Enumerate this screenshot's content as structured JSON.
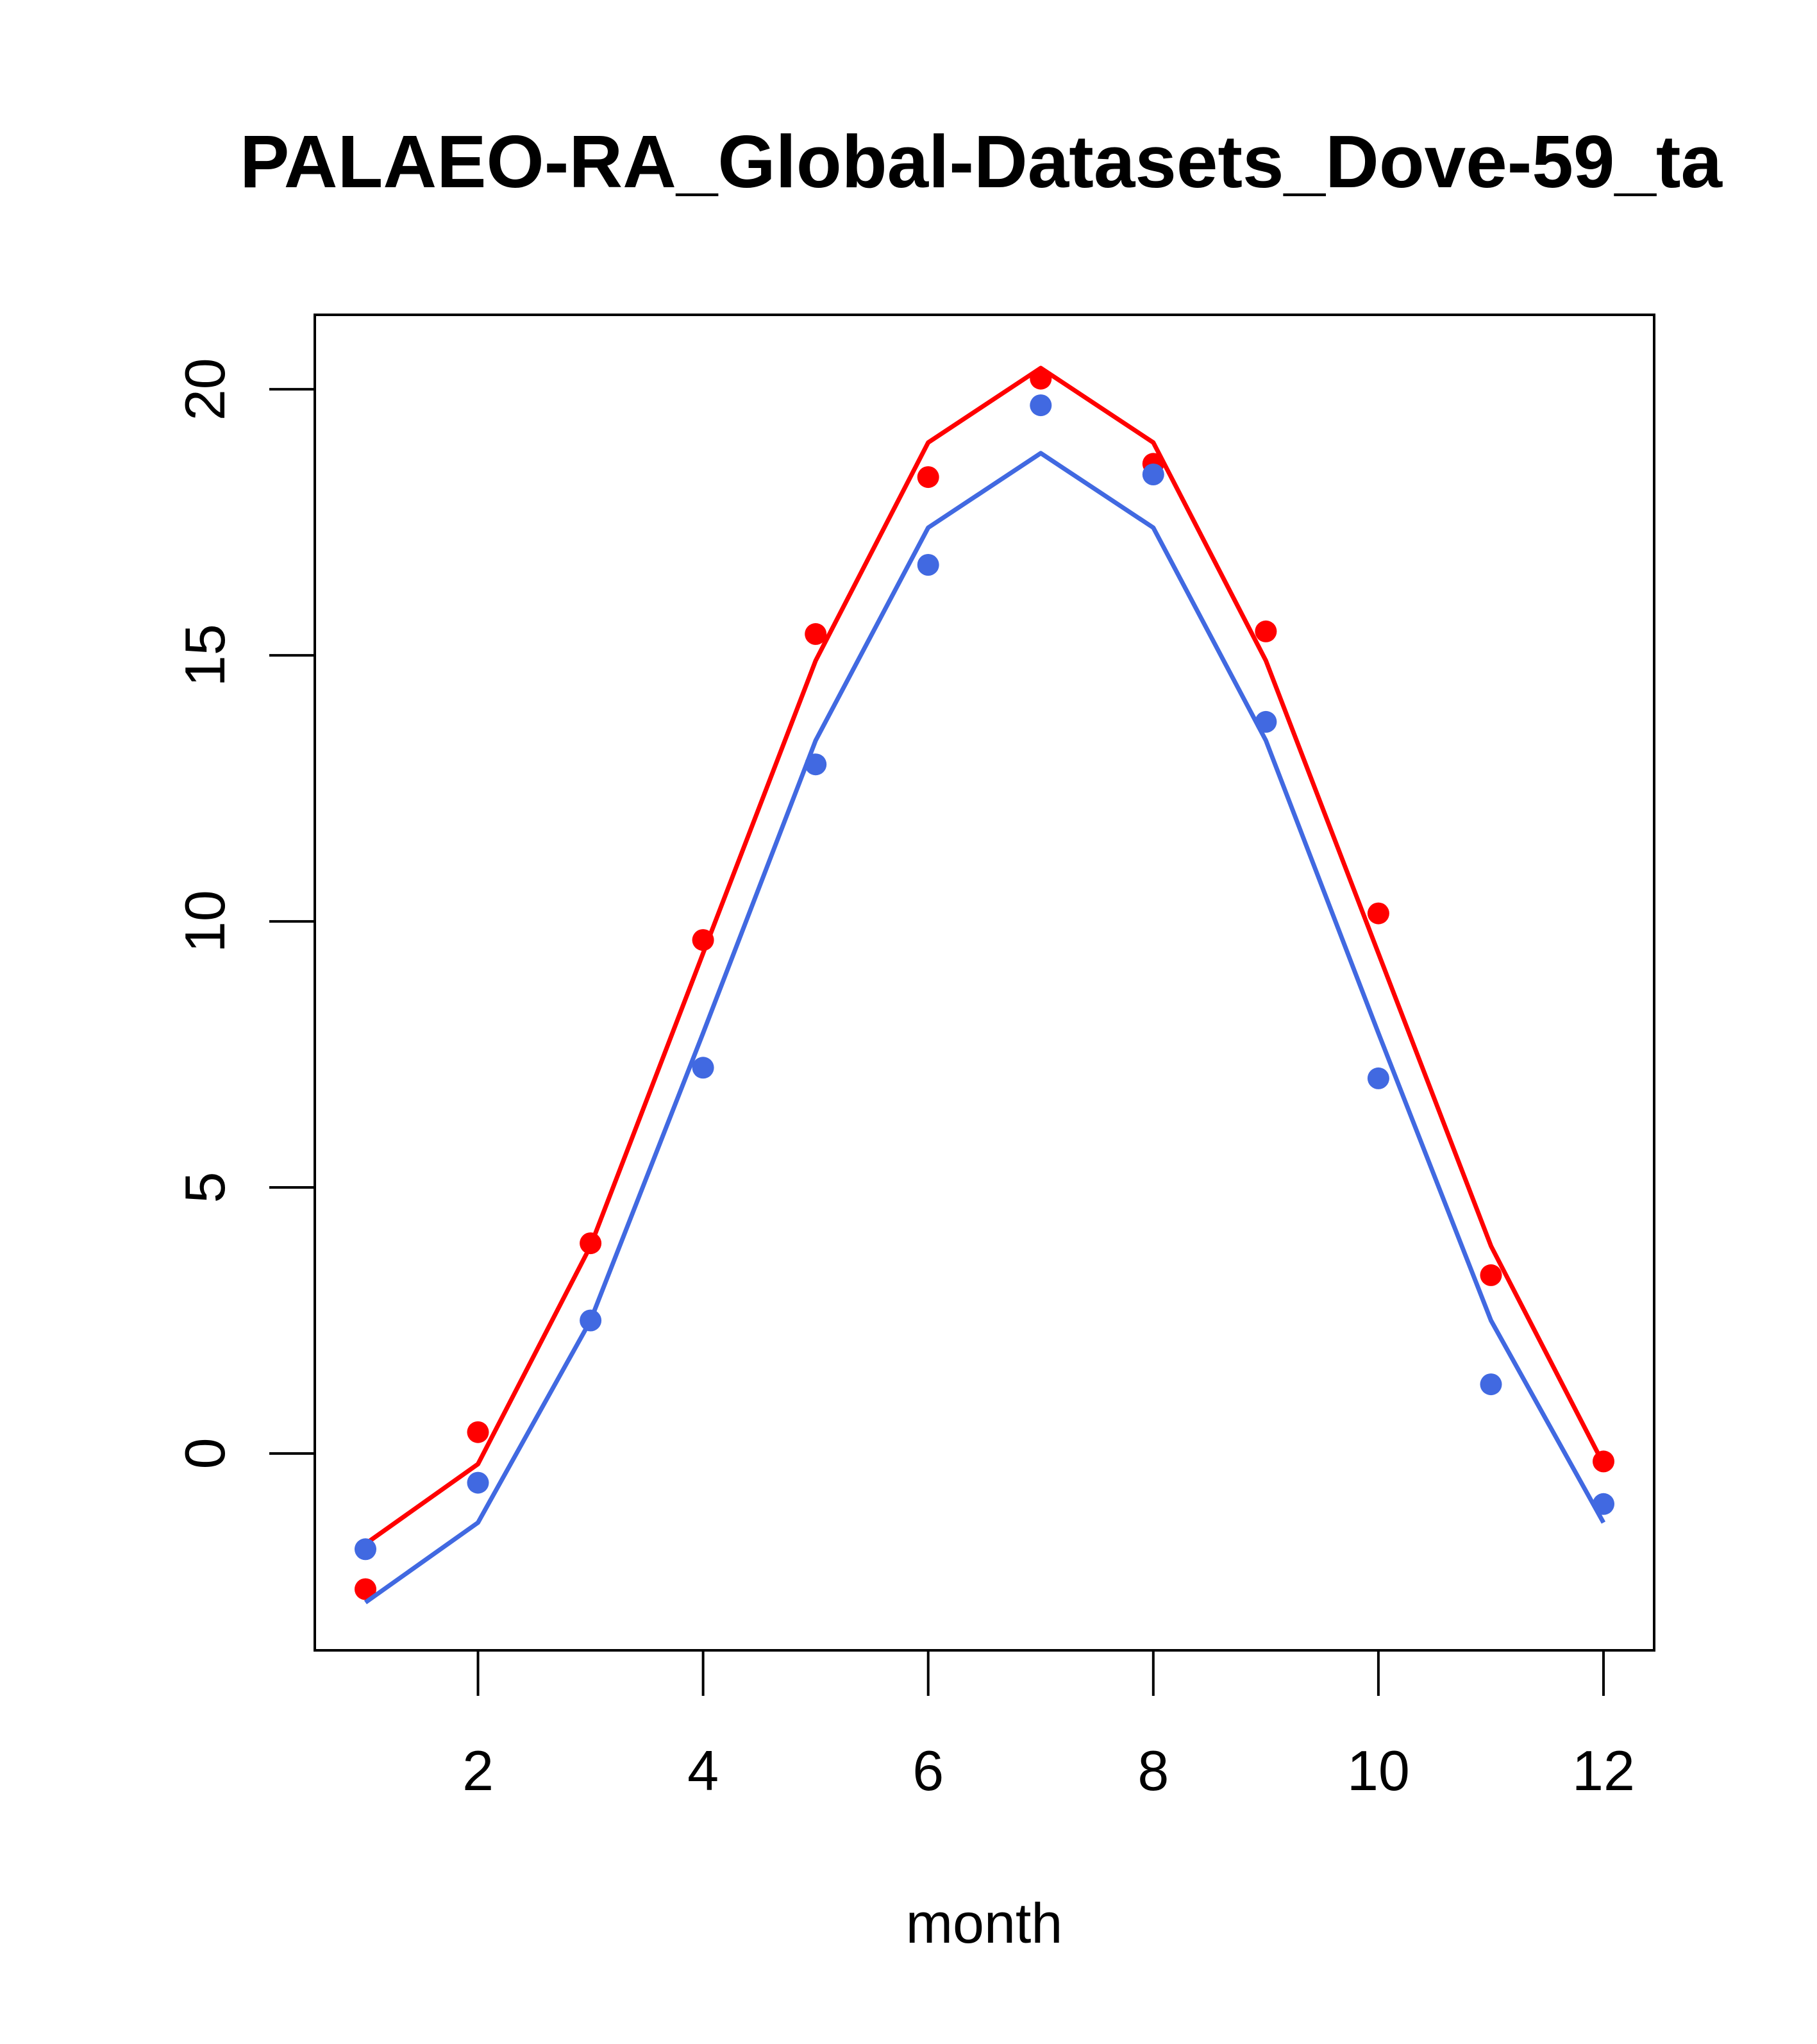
{
  "chart_data": {
    "type": "line",
    "title": "PALAEO-RA_Global-Datasets_Dove-59_ta",
    "xlabel": "month",
    "ylabel": "",
    "xlim": [
      0.55,
      12.45
    ],
    "ylim": [
      -3.7,
      21.4
    ],
    "x_ticks": [
      2,
      4,
      6,
      8,
      10,
      12
    ],
    "y_ticks": [
      0,
      5,
      10,
      15,
      20
    ],
    "grid": false,
    "legend": "none",
    "x": [
      1,
      2,
      3,
      4,
      5,
      6,
      7,
      8,
      9,
      10,
      11,
      12
    ],
    "series": [
      {
        "color": "#ff0000",
        "line": [
          -1.7,
          -0.2,
          3.9,
          9.4,
          14.9,
          19.0,
          20.4,
          19.0,
          14.9,
          9.4,
          3.9,
          -0.2
        ],
        "points": [
          -2.55,
          0.4,
          3.95,
          9.65,
          15.4,
          18.35,
          20.2,
          18.6,
          15.45,
          10.15,
          3.35,
          -0.15
        ]
      },
      {
        "color": "#4169e1",
        "line": [
          -2.8,
          -1.3,
          2.5,
          7.9,
          13.4,
          17.4,
          18.8,
          17.4,
          13.4,
          7.9,
          2.5,
          -1.3
        ],
        "points": [
          -1.8,
          -0.55,
          2.5,
          7.25,
          12.95,
          16.7,
          19.7,
          18.4,
          13.75,
          7.05,
          1.3,
          -0.95
        ]
      }
    ]
  }
}
